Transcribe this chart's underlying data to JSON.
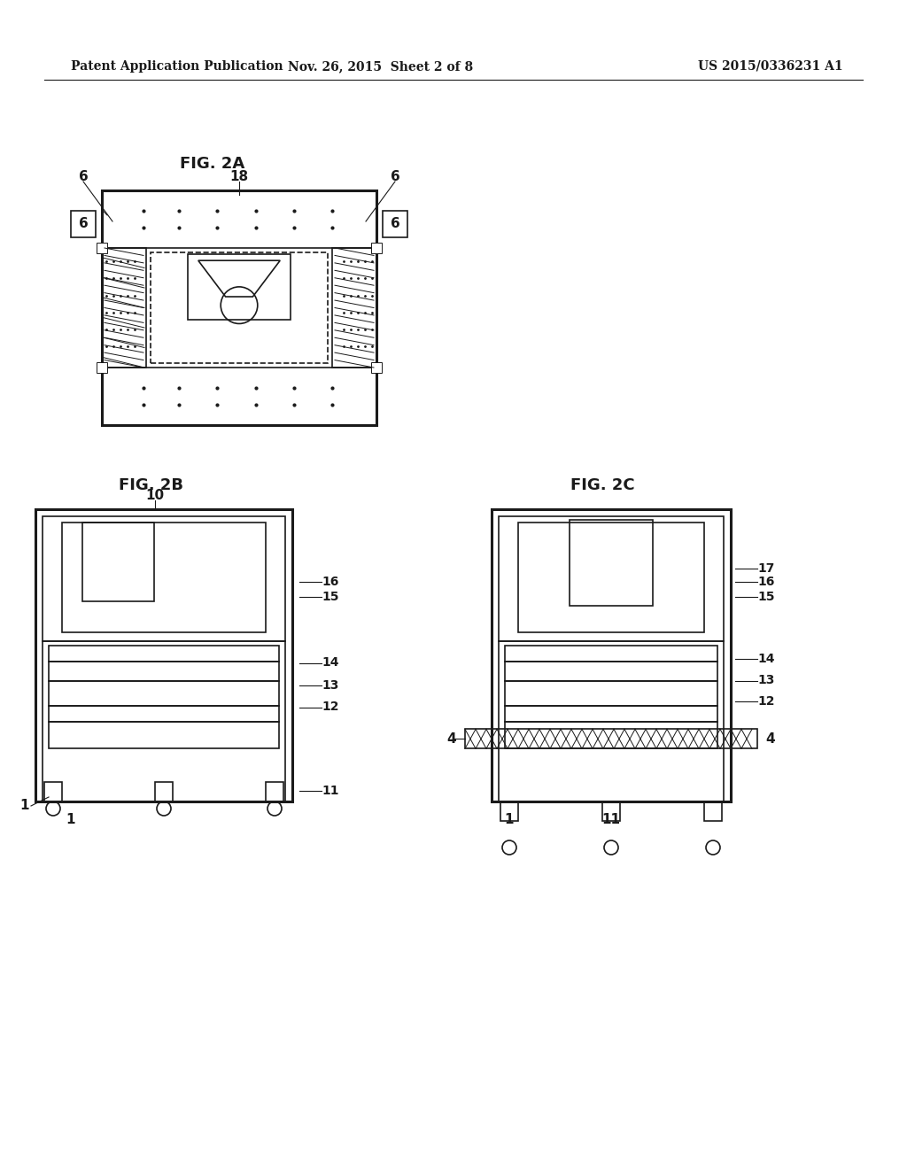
{
  "bg_color": "#ffffff",
  "line_color": "#1a1a1a",
  "header_left": "Patent Application Publication",
  "header_mid": "Nov. 26, 2015  Sheet 2 of 8",
  "header_right": "US 2015/0336231 A1",
  "fig2a_label": "FIG. 2A",
  "fig2b_label": "FIG. 2B",
  "fig2c_label": "FIG. 2C"
}
